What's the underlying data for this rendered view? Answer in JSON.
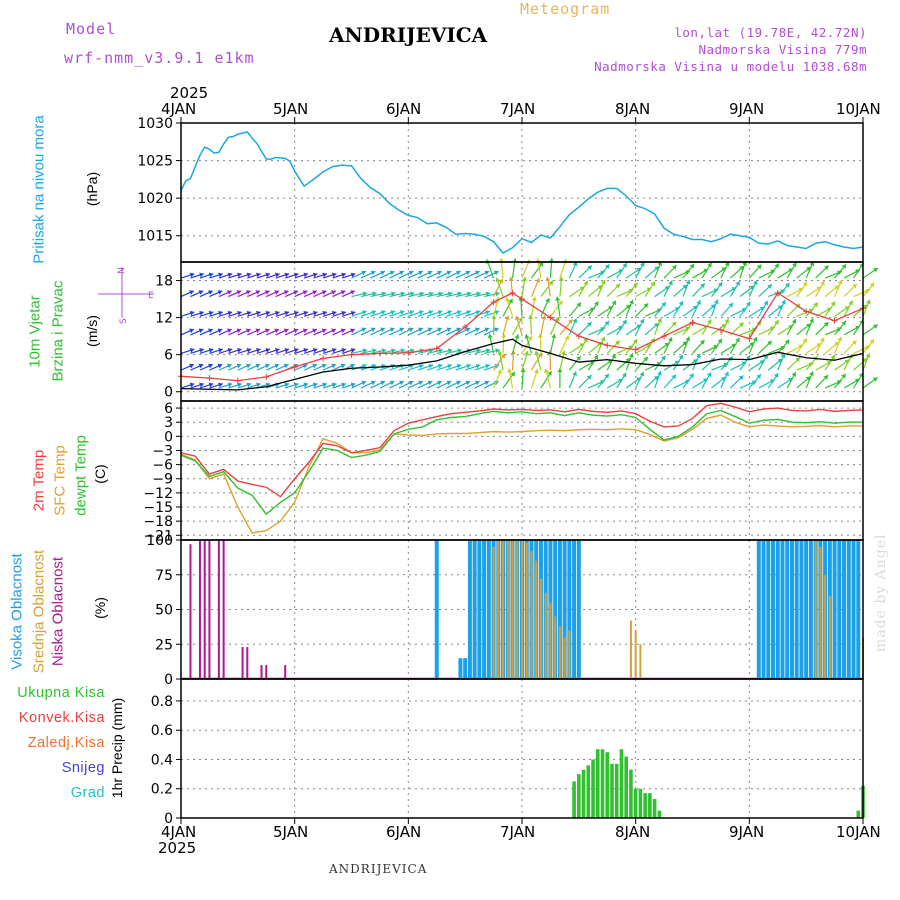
{
  "header": {
    "model_label": "Model",
    "model_name": "wrf-nmm_v3.9.1 e1km",
    "title": "ANDRIJEVICA",
    "meteogram": "Meteogram",
    "lonlat": "lon,lat (19.78E, 42.72N)",
    "elevation": "Nadmorska Visina 779m",
    "model_elevation": "Nadmorska Visina u modelu 1038.68m"
  },
  "footer": {
    "station": "ANDRIJEVICA",
    "credit": "made by Angel"
  },
  "x_axis": {
    "year": "2025",
    "ticks": [
      "4JAN",
      "5JAN",
      "6JAN",
      "7JAN",
      "8JAN",
      "9JAN",
      "10JAN"
    ]
  },
  "colors": {
    "pressure": "#1ba6e6",
    "temp2m": "#e84040",
    "sfc": "#e0a030",
    "dewpt": "#30c030",
    "high_cloud": "#1ca0e8",
    "mid_cloud": "#d4a03a",
    "low_cloud": "#b01890",
    "precip_total": "#30c030",
    "convective": "#e84040",
    "freezing": "#f07030",
    "snow": "#4040e0",
    "hail": "#20c0c0",
    "wind_speed": "#000000",
    "wind_gust": "#e84040"
  },
  "panels": {
    "pressure": {
      "side_label": "Pritisak na nivou mora",
      "unit": "(hPa)"
    },
    "wind": {
      "side_label_1": "10m Vjetar",
      "side_label_2": "Brzina i Pravac",
      "unit": "(m/s)",
      "compass_n": "N",
      "compass_w": "W",
      "compass_e": "E",
      "compass_s": "S"
    },
    "temp": {
      "label_2m": "2m Temp",
      "label_sfc": "SFC Temp",
      "label_dewpt": "dewpt Temp",
      "unit": "(C)"
    },
    "cloud": {
      "label_high": "Visoka Oblacnost",
      "label_mid": "Srednja Oblacnost",
      "label_low": "Niska Oblacnost",
      "unit": "(%)"
    },
    "precip": {
      "legend": [
        "Ukupna Kisa",
        "Konvek.Kisa",
        "Zaledj.Kisa",
        "Snijeg",
        "Grad"
      ],
      "unit": "1hr Precip (mm)"
    }
  },
  "chart_data": [
    {
      "type": "line",
      "title": "",
      "ylabel": "Pritisak na nivou mora (hPa)",
      "ylim": [
        1011.5,
        1030
      ],
      "yticks": [
        1015,
        1020,
        1025,
        1030
      ],
      "xlim_hours": [
        0,
        144
      ],
      "series": [
        {
          "name": "Pritisak na nivou mora",
          "x": [
            0,
            1,
            2,
            3,
            4,
            5,
            6,
            7,
            8,
            9,
            10,
            11,
            12,
            14,
            15,
            16,
            18,
            19,
            20,
            22,
            23,
            24,
            25,
            26,
            28,
            30,
            32,
            34,
            36,
            38,
            40,
            42,
            44,
            46,
            48,
            50,
            52,
            54,
            56,
            58,
            60,
            62,
            64,
            66,
            68,
            70,
            72,
            74,
            76,
            78,
            80,
            82,
            84,
            86,
            88,
            90,
            92,
            94,
            96,
            98,
            100,
            102,
            104,
            106,
            108,
            110,
            112,
            114,
            116,
            118,
            120,
            122,
            124,
            126,
            128,
            130,
            132,
            134,
            136,
            138,
            140,
            142,
            144
          ],
          "values": [
            1021,
            1022.3,
            1022.6,
            1024.2,
            1025.7,
            1026.8,
            1026.5,
            1026.0,
            1026.1,
            1027.2,
            1028.1,
            1028.2,
            1028.5,
            1028.8,
            1028.0,
            1027.3,
            1025.2,
            1025.2,
            1025.4,
            1025.3,
            1024.9,
            1023.6,
            1022.6,
            1021.6,
            1022.5,
            1023.5,
            1024.2,
            1024.4,
            1024.3,
            1022.6,
            1021.4,
            1020.6,
            1019.3,
            1018.4,
            1017.7,
            1017.4,
            1016.6,
            1016.7,
            1016.1,
            1015.2,
            1015.3,
            1015.2,
            1014.9,
            1014.2,
            1012.7,
            1013.4,
            1014.6,
            1014.1,
            1015.1,
            1014.7,
            1016.2,
            1017.8,
            1018.8,
            1019.9,
            1020.8,
            1021.3,
            1021.3,
            1020.3,
            1019.0,
            1018.6,
            1017.9,
            1016.0,
            1015.2,
            1014.9,
            1014.5,
            1014.5,
            1014.2,
            1014.6,
            1015.2,
            1015.0,
            1014.8,
            1014.0,
            1013.9,
            1014.3,
            1013.7,
            1013.5,
            1013.3,
            1014.0,
            1014.2,
            1013.8,
            1013.5,
            1013.3,
            1013.5
          ]
        }
      ]
    },
    {
      "type": "line",
      "title": "",
      "ylabel": "10m Vjetar Brzina i Pravac (m/s)",
      "ylim": [
        -1.5,
        21
      ],
      "yticks": [
        0,
        6,
        12,
        18
      ],
      "xlim_hours": [
        0,
        144
      ],
      "series": [
        {
          "name": "wind speed",
          "x": [
            0,
            6,
            12,
            18,
            24,
            30,
            36,
            42,
            48,
            54,
            60,
            66,
            70,
            72,
            78,
            84,
            90,
            96,
            102,
            108,
            114,
            120,
            126,
            132,
            138,
            144
          ],
          "values": [
            0.5,
            0.4,
            0.3,
            0.8,
            2.0,
            3.2,
            3.8,
            4.0,
            4.3,
            5.0,
            6.5,
            7.8,
            8.5,
            7.5,
            6.2,
            4.8,
            5.2,
            4.6,
            4.2,
            4.4,
            5.3,
            5.2,
            6.4,
            5.5,
            5.1,
            6.2
          ]
        },
        {
          "name": "wind gust",
          "x": [
            0,
            6,
            12,
            18,
            24,
            30,
            36,
            42,
            48,
            54,
            60,
            66,
            70,
            72,
            78,
            84,
            90,
            96,
            102,
            108,
            114,
            120,
            126,
            132,
            138,
            144
          ],
          "values": [
            2.5,
            2.2,
            1.8,
            2.4,
            4.0,
            5.4,
            6.0,
            6.2,
            6.3,
            7.0,
            10.5,
            14.5,
            16.0,
            15.0,
            12.0,
            9.0,
            7.5,
            6.8,
            9.0,
            11.2,
            10.0,
            8.6,
            16.0,
            13.0,
            11.5,
            13.5
          ]
        }
      ]
    },
    {
      "type": "line",
      "title": "",
      "ylabel": "Temp (C)",
      "ylim": [
        -22,
        7.5
      ],
      "yticks": [
        -21,
        -18,
        -15,
        -12,
        -9,
        -6,
        -3,
        0,
        3,
        6
      ],
      "xlim_hours": [
        0,
        144
      ],
      "series": [
        {
          "name": "2m Temp",
          "x": [
            0,
            3,
            6,
            9,
            12,
            15,
            18,
            21,
            24,
            27,
            30,
            33,
            36,
            39,
            42,
            45,
            48,
            51,
            54,
            57,
            60,
            63,
            66,
            69,
            72,
            75,
            78,
            81,
            84,
            87,
            90,
            93,
            96,
            99,
            102,
            105,
            108,
            111,
            114,
            117,
            120,
            123,
            126,
            129,
            132,
            135,
            138,
            141,
            144
          ],
          "values": [
            -3.5,
            -4.2,
            -8,
            -7,
            -9.5,
            -10.2,
            -10.8,
            -12.8,
            -9,
            -5.5,
            -1.5,
            -2.0,
            -3.5,
            -3.0,
            -2.4,
            1.2,
            2.8,
            3.5,
            4.2,
            4.8,
            5.1,
            5.4,
            5.8,
            5.6,
            5.7,
            5.5,
            5.6,
            5.2,
            5.7,
            5.3,
            5.1,
            5.4,
            4.8,
            3.2,
            2.0,
            2.2,
            3.8,
            6.5,
            7.0,
            6.2,
            5.2,
            5.8,
            6.0,
            5.5,
            5.4,
            5.7,
            5.3,
            5.5,
            5.6
          ]
        },
        {
          "name": "SFC Temp",
          "x": [
            0,
            3,
            6,
            9,
            12,
            15,
            18,
            21,
            24,
            27,
            30,
            33,
            36,
            39,
            42,
            45,
            48,
            51,
            54,
            57,
            60,
            63,
            66,
            69,
            72,
            75,
            78,
            81,
            84,
            87,
            90,
            93,
            96,
            99,
            102,
            105,
            108,
            111,
            114,
            117,
            120,
            123,
            126,
            129,
            132,
            135,
            138,
            141,
            144
          ],
          "values": [
            -3.8,
            -5,
            -9,
            -8,
            -15,
            -20.5,
            -20,
            -18,
            -14,
            -6.5,
            -0.5,
            -1.5,
            -3.5,
            -3.5,
            -2.9,
            0.5,
            0.3,
            0.2,
            0.5,
            0.6,
            0.6,
            0.8,
            1.0,
            0.9,
            1.0,
            1.2,
            1.3,
            1.2,
            1.4,
            1.5,
            1.4,
            1.6,
            1.4,
            0.4,
            -1.0,
            -0.3,
            1.5,
            3.8,
            4.5,
            3.0,
            2.0,
            2.4,
            2.2,
            2.0,
            2.1,
            2.3,
            2.0,
            2.2,
            2.2
          ]
        },
        {
          "name": "dewpt Temp",
          "x": [
            0,
            3,
            6,
            9,
            12,
            15,
            18,
            21,
            24,
            27,
            30,
            33,
            36,
            39,
            42,
            45,
            48,
            51,
            54,
            57,
            60,
            63,
            66,
            69,
            72,
            75,
            78,
            81,
            84,
            87,
            90,
            93,
            96,
            99,
            102,
            105,
            108,
            111,
            114,
            117,
            120,
            123,
            126,
            129,
            132,
            135,
            138,
            141,
            144
          ],
          "values": [
            -4.0,
            -5.2,
            -8.5,
            -7.5,
            -11,
            -12.5,
            -16.5,
            -14,
            -12,
            -7.5,
            -2.5,
            -3.0,
            -4.5,
            -4.0,
            -3.2,
            0.5,
            1.5,
            2.0,
            3.5,
            4.0,
            4.2,
            4.8,
            5.3,
            5.0,
            5.2,
            4.8,
            5.0,
            4.4,
            5.0,
            4.5,
            4.3,
            4.6,
            4.0,
            1.5,
            -0.8,
            0.0,
            2.0,
            4.8,
            5.5,
            4.2,
            2.8,
            3.4,
            3.6,
            3.0,
            2.9,
            3.1,
            2.8,
            3.0,
            3.0
          ]
        }
      ]
    },
    {
      "type": "bar",
      "title": "",
      "ylabel": "Oblacnost (%)",
      "ylim": [
        0,
        100
      ],
      "yticks": [
        0,
        25,
        50,
        75,
        100
      ],
      "xlim_hours": [
        0,
        144
      ],
      "series": [
        {
          "name": "Visoka Oblacnost",
          "x": [
            54,
            59,
            60,
            61,
            62,
            63,
            64,
            65,
            66,
            67,
            68,
            69,
            70,
            71,
            72,
            73,
            74,
            75,
            76,
            77,
            78,
            79,
            80,
            81,
            82,
            83,
            84,
            122,
            123,
            124,
            125,
            126,
            127,
            128,
            129,
            130,
            131,
            132,
            133,
            134,
            135,
            136,
            137,
            138,
            139,
            140,
            141,
            142,
            143
          ],
          "values": [
            100,
            15,
            15,
            100,
            100,
            100,
            100,
            100,
            100,
            100,
            100,
            100,
            100,
            100,
            100,
            100,
            100,
            100,
            100,
            100,
            100,
            100,
            100,
            100,
            100,
            100,
            100,
            100,
            100,
            100,
            100,
            100,
            100,
            100,
            100,
            100,
            100,
            100,
            100,
            100,
            100,
            100,
            100,
            100,
            100,
            100,
            100,
            100,
            100
          ]
        },
        {
          "name": "Srednja Oblacnost",
          "x": [
            66,
            67,
            68,
            69,
            70,
            71,
            72,
            73,
            74,
            75,
            76,
            77,
            78,
            79,
            80,
            81,
            82,
            95,
            96,
            97,
            134,
            135,
            136,
            137,
            144
          ],
          "values": [
            95,
            100,
            100,
            100,
            100,
            100,
            100,
            98,
            92,
            85,
            72,
            62,
            55,
            45,
            38,
            30,
            35,
            42,
            35,
            25,
            100,
            95,
            75,
            60,
            30
          ]
        },
        {
          "name": "Niska Oblacnost",
          "x": [
            2,
            4,
            5,
            6,
            8,
            9,
            13,
            14,
            17,
            18,
            22
          ],
          "values": [
            97,
            100,
            100,
            100,
            100,
            100,
            23,
            23,
            10,
            10,
            10
          ]
        }
      ]
    },
    {
      "type": "bar",
      "title": "",
      "ylabel": "1hr Precip (mm)",
      "ylim": [
        0,
        0.95
      ],
      "yticks": [
        0,
        0.2,
        0.4,
        0.6,
        0.8
      ],
      "xlim_hours": [
        0,
        144
      ],
      "series": [
        {
          "name": "Ukupna Kisa",
          "x": [
            83,
            84,
            85,
            86,
            87,
            88,
            89,
            90,
            91,
            92,
            93,
            94,
            95,
            96,
            97,
            98,
            99,
            100,
            101,
            143,
            144
          ],
          "values": [
            0.25,
            0.3,
            0.33,
            0.36,
            0.4,
            0.47,
            0.47,
            0.45,
            0.37,
            0.37,
            0.47,
            0.42,
            0.33,
            0.2,
            0.2,
            0.17,
            0.17,
            0.13,
            0.05,
            0.05,
            0.22
          ]
        }
      ]
    }
  ]
}
